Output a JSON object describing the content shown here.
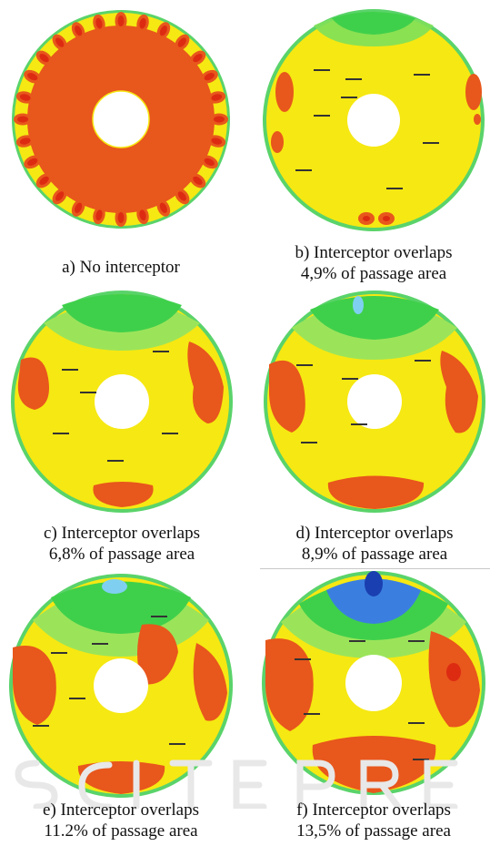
{
  "figure": {
    "panels": [
      {
        "id": "a",
        "caption_line1": "a) No interceptor",
        "caption_line2": ""
      },
      {
        "id": "b",
        "caption_line1": "b) Interceptor overlaps",
        "caption_line2": "4,9% of passage area"
      },
      {
        "id": "c",
        "caption_line1": "c) Interceptor overlaps",
        "caption_line2": "6,8% of passage area"
      },
      {
        "id": "d",
        "caption_line1": "d) Interceptor overlaps",
        "caption_line2": "8,9% of passage area"
      },
      {
        "id": "e",
        "caption_line1": "e) Interceptor overlaps",
        "caption_line2": "11.2% of passage area"
      },
      {
        "id": "f",
        "caption_line1": "f) Interceptor overlaps",
        "caption_line2": "13,5% of passage area"
      }
    ],
    "watermark": "SCITEPRESS",
    "colors": {
      "hot": "#e8571c",
      "hotter": "#dd2b12",
      "mid": "#f6e812",
      "cool_green": "#3fd04b",
      "cold_blue": "#3a7fe0",
      "rim": "#5ad36a"
    }
  }
}
